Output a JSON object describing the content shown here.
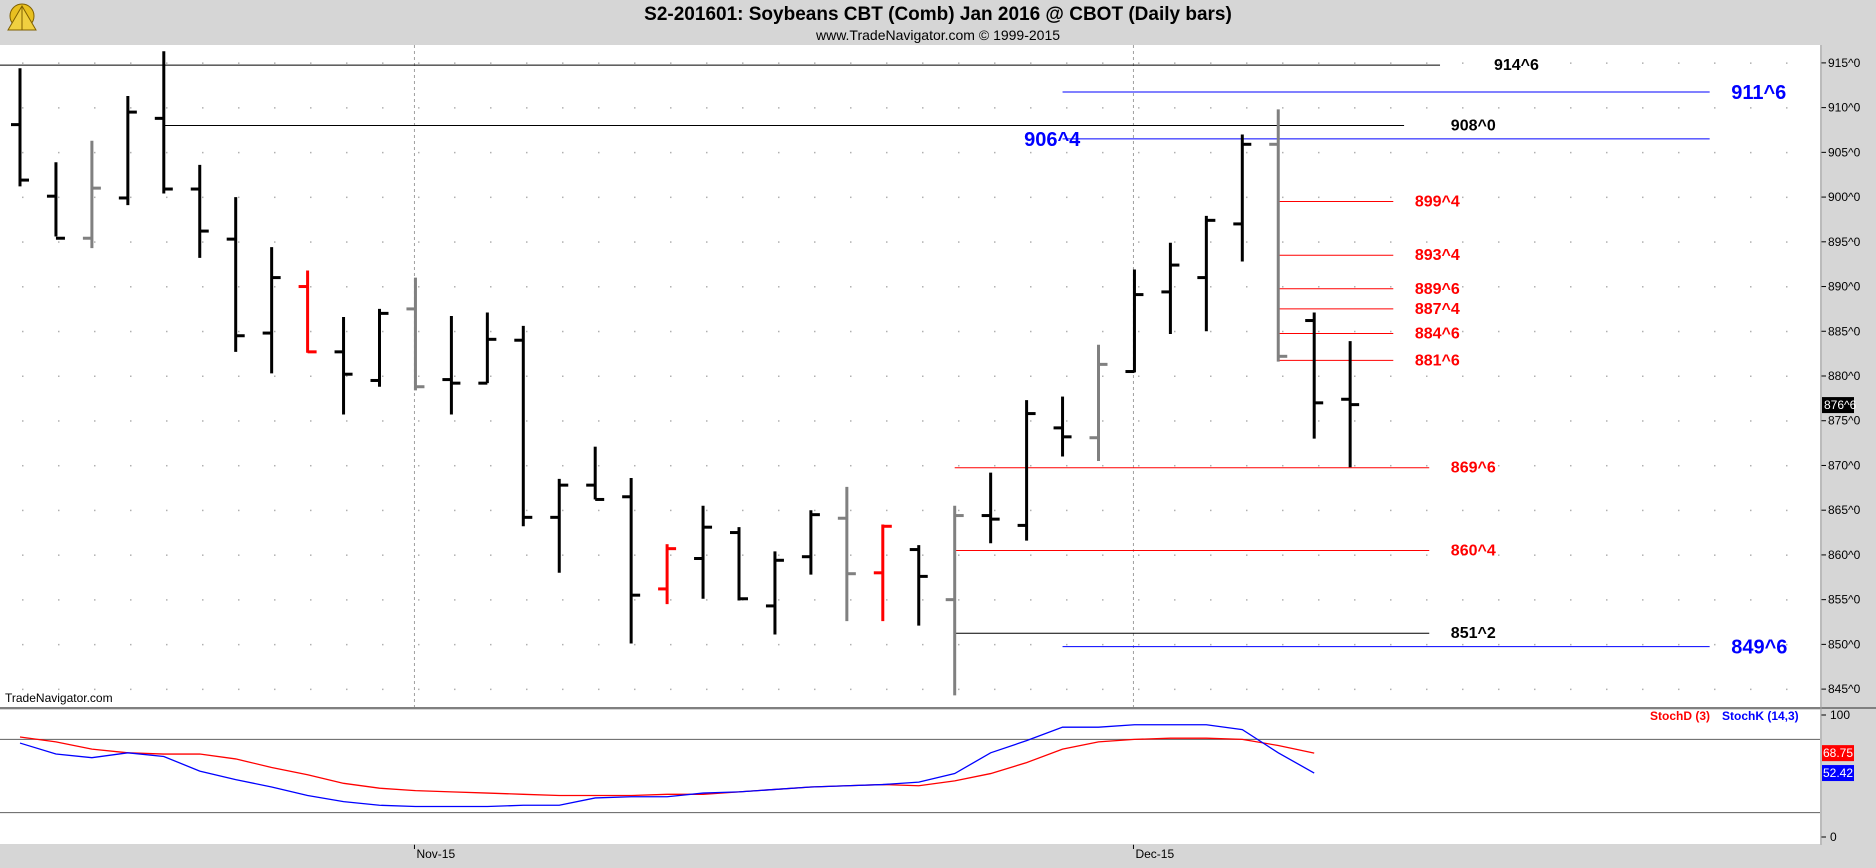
{
  "header": {
    "title": "S2-201601:  Soybeans CBT (Comb) Jan 2016 @ CBOT  (Daily bars)",
    "subtitle": "www.TradeNavigator.com © 1999-2015",
    "logo_icon": "tradenavigator-logo-icon"
  },
  "watermark": "TradeNavigator.com",
  "colors": {
    "up_bar": "#000000",
    "down_bar": "#000000",
    "red_bar": "#ff0000",
    "gray_bar": "#808080",
    "blue_level": "#0000ff",
    "red_level": "#ff0000",
    "black_level": "#000000",
    "stoch_d": "#ff0000",
    "stoch_k": "#0000ff"
  },
  "chart_data": [
    {
      "type": "ohlc",
      "title": "S2-201601:  Soybeans CBT (Comb) Jan 2016 @ CBOT  (Daily bars)",
      "ylim": [
        843,
        917
      ],
      "y_ticks": [
        "915^0",
        "910^0",
        "905^0",
        "900^0",
        "895^0",
        "890^0",
        "885^0",
        "880^0",
        "875^0",
        "870^0",
        "865^0",
        "860^0",
        "855^0",
        "850^0",
        "845^0"
      ],
      "y_tick_values": [
        915,
        910,
        905,
        900,
        895,
        890,
        885,
        880,
        875,
        870,
        865,
        860,
        855,
        850,
        845
      ],
      "x_ticks": [
        {
          "label": "Nov-15",
          "index": 11
        },
        {
          "label": "Dec-15",
          "index": 31
        }
      ],
      "last_price_label": "876^6",
      "last_price_value": 876.75,
      "bars": [
        {
          "o": 908.1,
          "h": 914.4,
          "l": 901.2,
          "c": 901.9,
          "color": "black"
        },
        {
          "o": 900.1,
          "h": 903.9,
          "l": 895.6,
          "c": 895.4,
          "color": "black"
        },
        {
          "o": 895.4,
          "h": 906.3,
          "l": 894.3,
          "c": 901.0,
          "color": "gray"
        },
        {
          "o": 899.9,
          "h": 911.3,
          "l": 899.1,
          "c": 909.5,
          "color": "black"
        },
        {
          "o": 908.8,
          "h": 916.3,
          "l": 900.4,
          "c": 900.9,
          "color": "black"
        },
        {
          "o": 900.9,
          "h": 903.6,
          "l": 893.2,
          "c": 896.2,
          "color": "black"
        },
        {
          "o": 895.3,
          "h": 900.0,
          "l": 882.7,
          "c": 884.5,
          "color": "black"
        },
        {
          "o": 884.8,
          "h": 894.4,
          "l": 880.3,
          "c": 891.0,
          "color": "black"
        },
        {
          "o": 890.0,
          "h": 891.8,
          "l": 882.6,
          "c": 882.7,
          "color": "red"
        },
        {
          "o": 882.7,
          "h": 886.6,
          "l": 875.7,
          "c": 880.2,
          "color": "black"
        },
        {
          "o": 879.5,
          "h": 887.5,
          "l": 878.8,
          "c": 887.0,
          "color": "black"
        },
        {
          "o": 887.5,
          "h": 891.0,
          "l": 878.4,
          "c": 878.8,
          "color": "gray"
        },
        {
          "o": 879.6,
          "h": 886.7,
          "l": 875.7,
          "c": 879.2,
          "color": "black"
        },
        {
          "o": 879.2,
          "h": 887.1,
          "l": 879.2,
          "c": 884.1,
          "color": "black"
        },
        {
          "o": 884.0,
          "h": 885.6,
          "l": 863.2,
          "c": 864.2,
          "color": "black"
        },
        {
          "o": 864.2,
          "h": 868.5,
          "l": 858.0,
          "c": 867.8,
          "color": "black"
        },
        {
          "o": 867.8,
          "h": 872.1,
          "l": 866.2,
          "c": 866.2,
          "color": "black"
        },
        {
          "o": 866.5,
          "h": 868.6,
          "l": 850.1,
          "c": 855.5,
          "color": "black"
        },
        {
          "o": 856.2,
          "h": 861.2,
          "l": 854.5,
          "c": 860.7,
          "color": "red"
        },
        {
          "o": 859.6,
          "h": 865.5,
          "l": 855.1,
          "c": 863.1,
          "color": "black"
        },
        {
          "o": 862.5,
          "h": 863.1,
          "l": 854.9,
          "c": 855.1,
          "color": "black"
        },
        {
          "o": 854.3,
          "h": 860.4,
          "l": 851.1,
          "c": 859.4,
          "color": "black"
        },
        {
          "o": 859.8,
          "h": 865.0,
          "l": 857.8,
          "c": 864.5,
          "color": "black"
        },
        {
          "o": 864.1,
          "h": 867.6,
          "l": 852.6,
          "c": 857.9,
          "color": "gray"
        },
        {
          "o": 858.0,
          "h": 863.4,
          "l": 852.6,
          "c": 863.2,
          "color": "red"
        },
        {
          "o": 860.6,
          "h": 861.1,
          "l": 852.1,
          "c": 857.6,
          "color": "black"
        },
        {
          "o": 855.0,
          "h": 865.5,
          "l": 844.3,
          "c": 864.4,
          "color": "gray"
        },
        {
          "o": 864.4,
          "h": 869.2,
          "l": 861.3,
          "c": 864.0,
          "color": "black"
        },
        {
          "o": 863.3,
          "h": 877.3,
          "l": 861.6,
          "c": 875.8,
          "color": "black"
        },
        {
          "o": 874.2,
          "h": 877.7,
          "l": 871.0,
          "c": 873.2,
          "color": "black"
        },
        {
          "o": 873.1,
          "h": 883.5,
          "l": 870.5,
          "c": 881.3,
          "color": "gray"
        },
        {
          "o": 880.5,
          "h": 891.9,
          "l": 880.4,
          "c": 889.1,
          "color": "black"
        },
        {
          "o": 889.4,
          "h": 894.9,
          "l": 884.7,
          "c": 892.4,
          "color": "black"
        },
        {
          "o": 891.0,
          "h": 897.9,
          "l": 885.0,
          "c": 897.4,
          "color": "black"
        },
        {
          "o": 897.0,
          "h": 907.0,
          "l": 892.8,
          "c": 905.9,
          "color": "black"
        },
        {
          "o": 905.9,
          "h": 909.8,
          "l": 881.6,
          "c": 882.2,
          "color": "gray"
        },
        {
          "o": 886.2,
          "h": 887.1,
          "l": 873.0,
          "c": 877.0,
          "color": "black"
        },
        {
          "o": 877.4,
          "h": 883.9,
          "l": 869.8,
          "c": 876.8,
          "color": "black"
        }
      ],
      "levels": [
        {
          "label": "914^6",
          "value": 914.75,
          "color": "black",
          "start_index": -1,
          "end_index": 39.5,
          "label_index": 41,
          "size": "small"
        },
        {
          "label": "911^6",
          "value": 911.75,
          "color": "blue",
          "start_index": 29,
          "end_index": 47,
          "label_index": 47.6,
          "size": "large"
        },
        {
          "label": "908^0",
          "value": 908.0,
          "color": "black",
          "start_index": 4,
          "end_index": 38.5,
          "label_index": 39.8,
          "size": "small"
        },
        {
          "label": "906^4",
          "value": 906.5,
          "color": "blue",
          "start_index": 29,
          "end_index": 47,
          "label_index": 27.6,
          "size": "large",
          "label_side": "left"
        },
        {
          "label": "899^4",
          "value": 899.5,
          "color": "red",
          "start_index": 35,
          "end_index": 38.2,
          "label_index": 38.8,
          "size": "small"
        },
        {
          "label": "893^4",
          "value": 893.5,
          "color": "red",
          "start_index": 35,
          "end_index": 38.2,
          "label_index": 38.8,
          "size": "small"
        },
        {
          "label": "889^6",
          "value": 889.75,
          "color": "red",
          "start_index": 35,
          "end_index": 38.2,
          "label_index": 38.8,
          "size": "small"
        },
        {
          "label": "887^4",
          "value": 887.5,
          "color": "red",
          "start_index": 35,
          "end_index": 38.2,
          "label_index": 38.8,
          "size": "small"
        },
        {
          "label": "884^6",
          "value": 884.75,
          "color": "red",
          "start_index": 35,
          "end_index": 38.2,
          "label_index": 38.8,
          "size": "small"
        },
        {
          "label": "881^6",
          "value": 881.75,
          "color": "red",
          "start_index": 35,
          "end_index": 38.2,
          "label_index": 38.8,
          "size": "small"
        },
        {
          "label": "869^6",
          "value": 869.75,
          "color": "red",
          "start_index": 26,
          "end_index": 39.2,
          "label_index": 39.8,
          "size": "small"
        },
        {
          "label": "860^4",
          "value": 860.5,
          "color": "red",
          "start_index": 26,
          "end_index": 39.2,
          "label_index": 39.8,
          "size": "small"
        },
        {
          "label": "851^2",
          "value": 851.25,
          "color": "black",
          "start_index": 26,
          "end_index": 39.2,
          "label_index": 39.8,
          "size": "small"
        },
        {
          "label": "849^6",
          "value": 849.75,
          "color": "blue",
          "start_index": 29,
          "end_index": 47,
          "label_index": 47.6,
          "size": "large"
        }
      ]
    },
    {
      "type": "line",
      "ylim": [
        0,
        100
      ],
      "y_ticks": [
        "100",
        "0"
      ],
      "y_tick_values": [
        100,
        0
      ],
      "reference_lines": [
        80,
        20
      ],
      "legend": [
        "StochD (3)",
        "StochK (14,3)"
      ],
      "series": [
        {
          "name": "StochD (3)",
          "color": "red",
          "last_label": "68.75",
          "values": [
            82,
            78,
            72,
            69,
            68,
            68,
            64,
            57,
            51,
            44,
            40,
            38,
            37,
            36,
            35,
            34,
            34,
            34,
            35,
            35,
            37,
            39,
            41,
            42,
            43,
            42,
            46,
            52,
            61,
            72,
            78,
            80,
            81,
            81,
            80,
            75,
            68.75
          ]
        },
        {
          "name": "StochK (14,3)",
          "color": "blue",
          "last_label": "52.42",
          "values": [
            77,
            68,
            65,
            69,
            66,
            54,
            47,
            41,
            34,
            29,
            26,
            25,
            25,
            25,
            26,
            26,
            32,
            33,
            33,
            36,
            37,
            39,
            41,
            42,
            43,
            45,
            52,
            69,
            79,
            90,
            90,
            92,
            92,
            92,
            88,
            69,
            52.42
          ]
        }
      ]
    }
  ]
}
